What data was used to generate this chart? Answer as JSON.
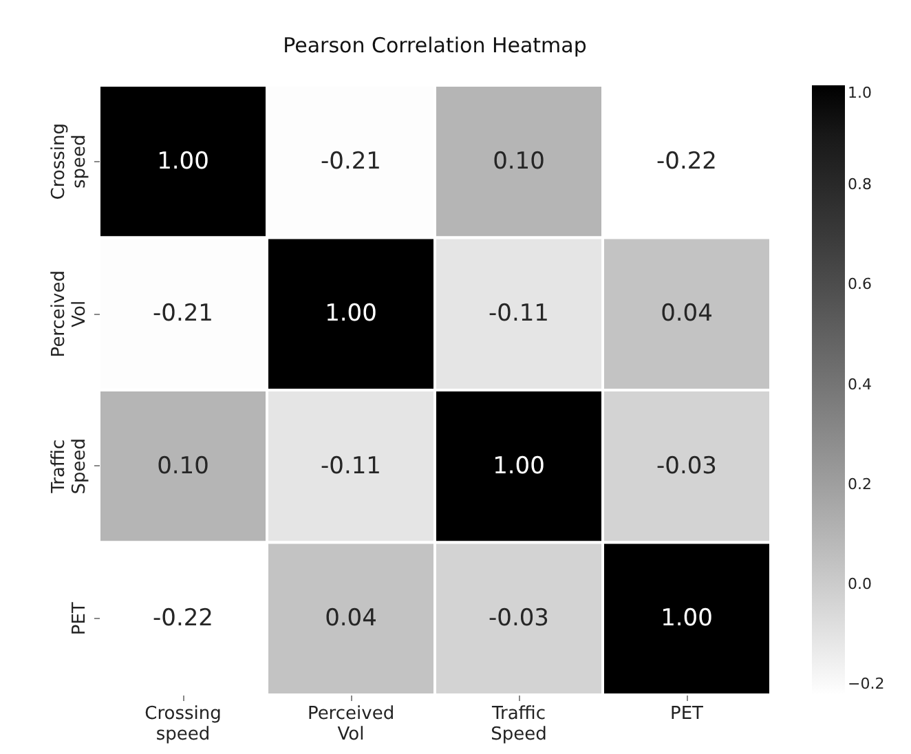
{
  "chart_data": {
    "type": "heatmap",
    "title": "Pearson Correlation Heatmap",
    "categories": [
      "Crossing\nspeed",
      "Perceived\nVol",
      "Traffic\nSpeed",
      "PET"
    ],
    "y_categories": [
      "Crossing\nspeed",
      "Perceived\nVol",
      "Traffic\nSpeed",
      "PET"
    ],
    "cells": [
      [
        1.0,
        -0.21,
        0.1,
        -0.22
      ],
      [
        -0.21,
        1.0,
        -0.11,
        0.04
      ],
      [
        0.1,
        -0.11,
        1.0,
        -0.03
      ],
      [
        -0.22,
        0.04,
        -0.03,
        1.0
      ]
    ],
    "cell_labels": [
      [
        "1.00",
        "-0.21",
        "0.10",
        "-0.22"
      ],
      [
        "-0.21",
        "1.00",
        "-0.11",
        "0.04"
      ],
      [
        "0.10",
        "-0.11",
        "1.00",
        "-0.03"
      ],
      [
        "-0.22",
        "0.04",
        "-0.03",
        "1.00"
      ]
    ],
    "clim": [
      -0.22,
      1.0
    ],
    "cticks": [
      -0.2,
      {
        "value": 0,
        "label": "0.0"
      },
      0.2,
      0.4,
      0.6,
      0.8,
      {
        "value": 1,
        "label": "1.0"
      }
    ],
    "data_labels": true
  }
}
